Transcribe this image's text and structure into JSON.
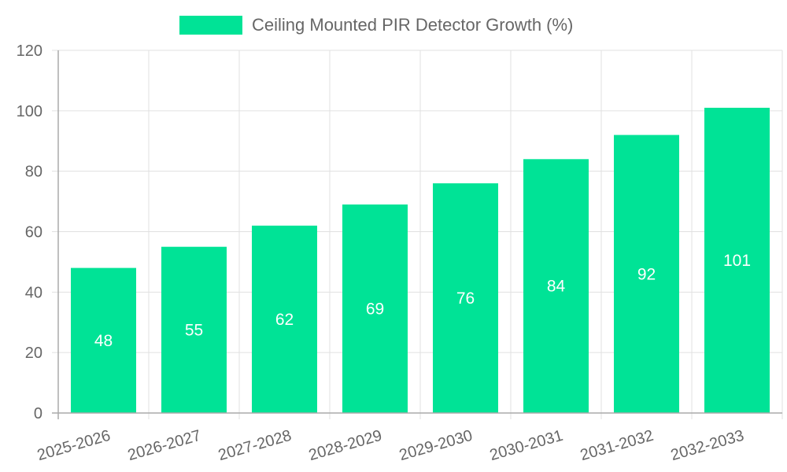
{
  "legend": {
    "label": "Ceiling Mounted PIR Detector Growth (%)",
    "color": "#00e396"
  },
  "colors": {
    "bar": "#00e396",
    "grid": "#e0e0e0",
    "axis": "#aaaaaa",
    "tick_text": "#666666",
    "data_label": "#ffffff"
  },
  "chart_data": {
    "type": "bar",
    "title": "",
    "categories": [
      "2025-2026",
      "2026-2027",
      "2027-2028",
      "2028-2029",
      "2029-2030",
      "2030-2031",
      "2031-2032",
      "2032-2033"
    ],
    "series": [
      {
        "name": "Ceiling Mounted PIR Detector Growth (%)",
        "values": [
          48,
          55,
          62,
          69,
          76,
          84,
          92,
          101
        ]
      }
    ],
    "xlabel": "",
    "ylabel": "",
    "ylim": [
      0,
      120
    ],
    "yticks": [
      0,
      20,
      40,
      60,
      80,
      100,
      120
    ],
    "grid": true,
    "legend_position": "top",
    "data_labels": true
  }
}
